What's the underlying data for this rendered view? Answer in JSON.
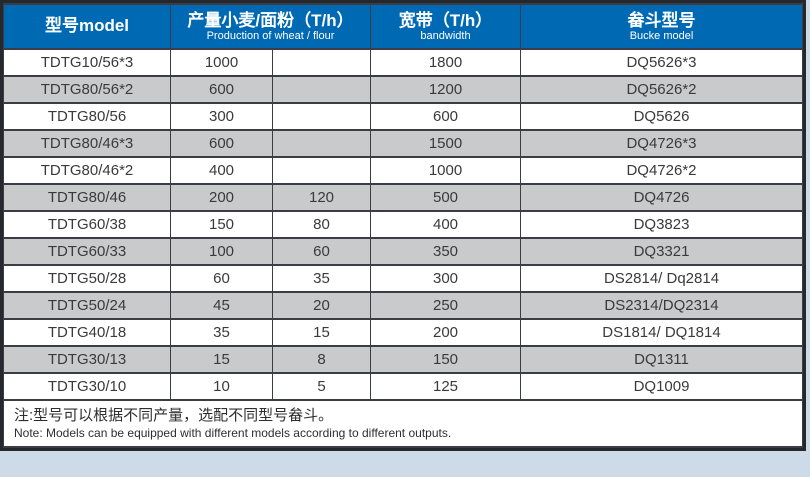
{
  "table": {
    "header": {
      "model": {
        "zh": "型号model"
      },
      "production": {
        "zh": "产量小麦/面粉（T/h）",
        "en": "Production of wheat / flour"
      },
      "bandwidth": {
        "zh": "宽带（T/h）",
        "en": "bandwidth"
      },
      "bucket": {
        "zh": "畚斗型号",
        "en": "Bucke model"
      }
    },
    "column_keys": [
      "model",
      "production_wheat",
      "production_flour",
      "bandwidth",
      "bucket"
    ],
    "rows": [
      {
        "model": "TDTG10/56*3",
        "production_wheat": "1000",
        "production_flour": "",
        "bandwidth": "1800",
        "bucket": "DQ5626*3"
      },
      {
        "model": "TDTG80/56*2",
        "production_wheat": "600",
        "production_flour": "",
        "bandwidth": "1200",
        "bucket": "DQ5626*2"
      },
      {
        "model": "TDTG80/56",
        "production_wheat": "300",
        "production_flour": "",
        "bandwidth": "600",
        "bucket": "DQ5626"
      },
      {
        "model": "TDTG80/46*3",
        "production_wheat": "600",
        "production_flour": "",
        "bandwidth": "1500",
        "bucket": "DQ4726*3"
      },
      {
        "model": "TDTG80/46*2",
        "production_wheat": "400",
        "production_flour": "",
        "bandwidth": "1000",
        "bucket": "DQ4726*2"
      },
      {
        "model": "TDTG80/46",
        "production_wheat": "200",
        "production_flour": "120",
        "bandwidth": "500",
        "bucket": "DQ4726"
      },
      {
        "model": "TDTG60/38",
        "production_wheat": "150",
        "production_flour": "80",
        "bandwidth": "400",
        "bucket": "DQ3823"
      },
      {
        "model": "TDTG60/33",
        "production_wheat": "100",
        "production_flour": "60",
        "bandwidth": "350",
        "bucket": "DQ3321"
      },
      {
        "model": "TDTG50/28",
        "production_wheat": "60",
        "production_flour": "35",
        "bandwidth": "300",
        "bucket": "DS2814/ Dq2814"
      },
      {
        "model": "TDTG50/24",
        "production_wheat": "45",
        "production_flour": "20",
        "bandwidth": "250",
        "bucket": "DS2314/DQ2314"
      },
      {
        "model": "TDTG40/18",
        "production_wheat": "35",
        "production_flour": "15",
        "bandwidth": "200",
        "bucket": "DS1814/ DQ1814"
      },
      {
        "model": "TDTG30/13",
        "production_wheat": "15",
        "production_flour": "8",
        "bandwidth": "150",
        "bucket": "DQ1311"
      },
      {
        "model": "TDTG30/10",
        "production_wheat": "10",
        "production_flour": "5",
        "bandwidth": "125",
        "bucket": "DQ1009"
      }
    ],
    "note": {
      "zh": "注:型号可以根据不同产量，选配不同型号畚斗。",
      "en": "Note: Models can be equipped with different models according to different outputs."
    }
  },
  "colors": {
    "header_bg": "#0069b4",
    "header_text": "#ffffff",
    "row_alt_bg": "#c9cacc",
    "border": "#3a3d43",
    "outer_border": "#25282d",
    "body_text": "#3a3a3a",
    "page_bg": "#ccdbe7"
  }
}
